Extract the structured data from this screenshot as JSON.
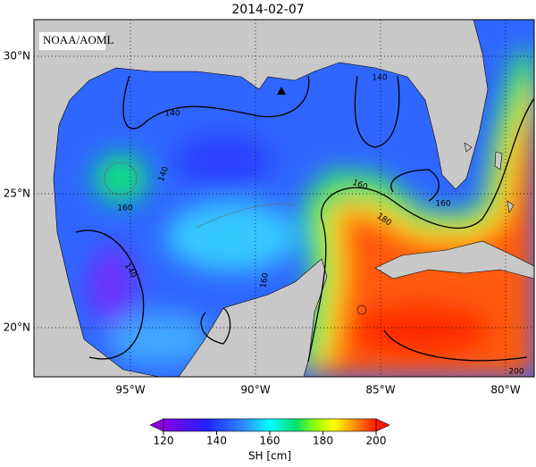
{
  "title": "2014-02-07",
  "credit": "NOAA/AOML",
  "lat_labels": [
    "30°N",
    "25°N",
    "20°N"
  ],
  "lon_labels": [
    "95°W",
    "90°W",
    "85°W",
    "80°W"
  ],
  "contour_labels": [
    "140",
    "140",
    "140",
    "160",
    "160",
    "180",
    "160",
    "140",
    "160",
    "200"
  ],
  "colorbar": {
    "ticks": [
      120,
      140,
      160,
      180,
      200
    ],
    "label": "SH [cm]"
  }
}
